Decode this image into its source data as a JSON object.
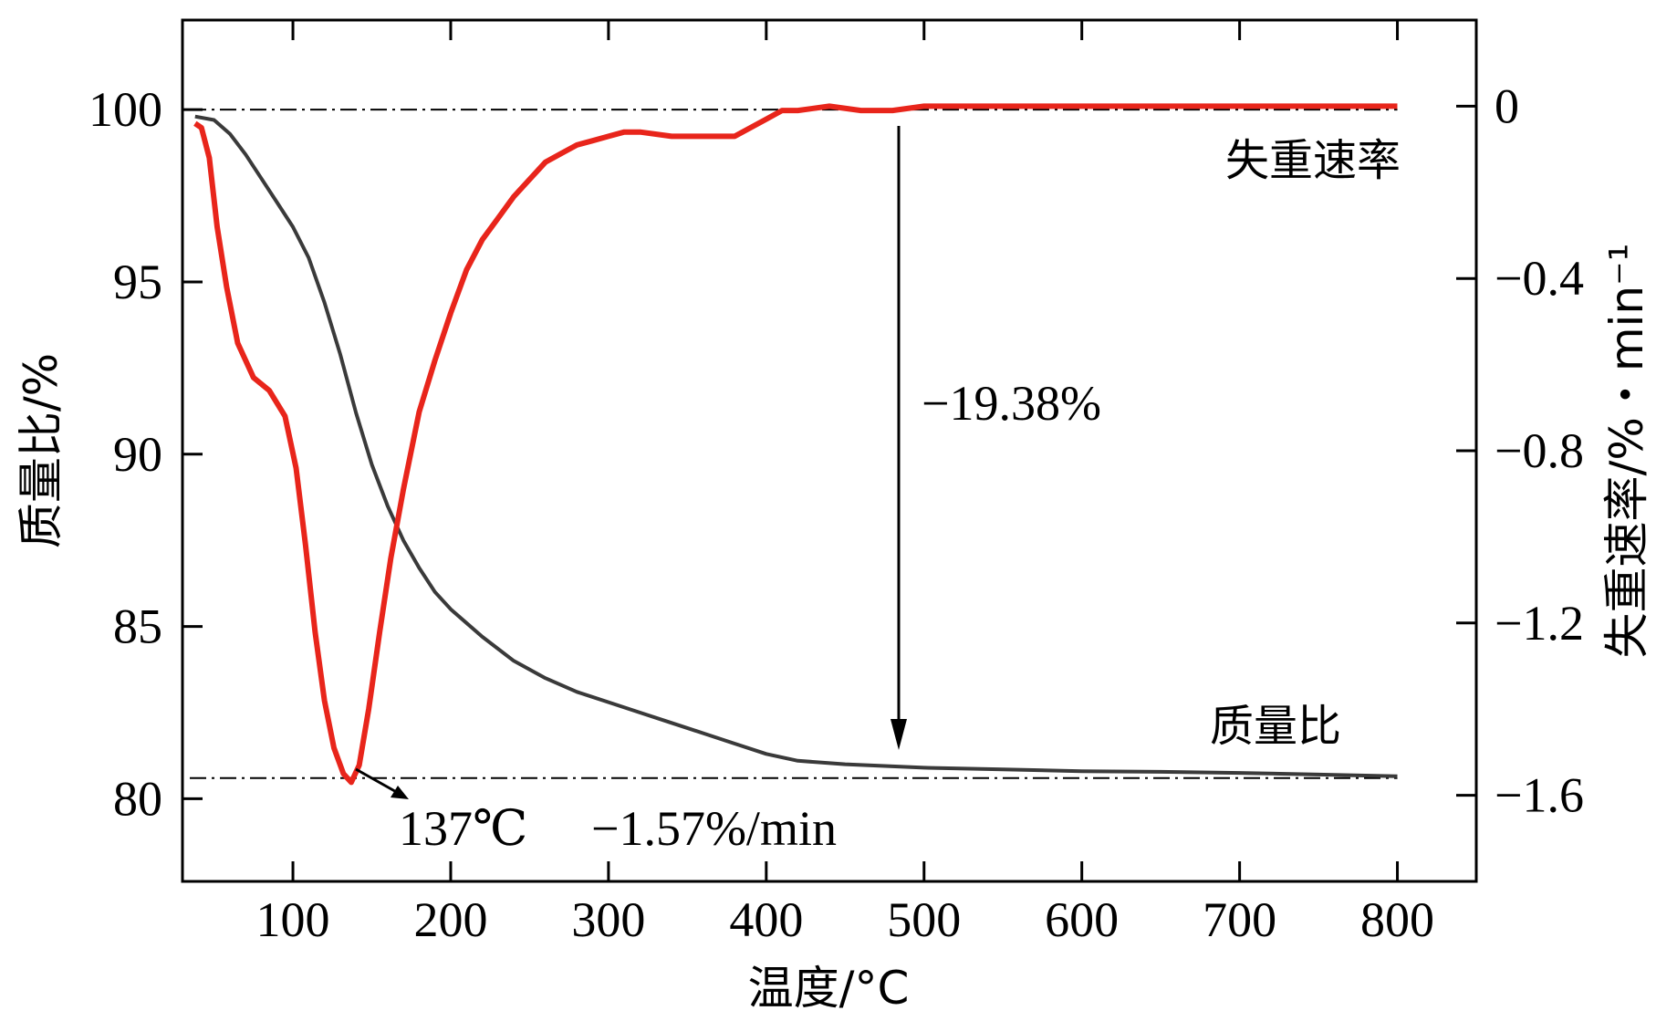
{
  "chart_data": {
    "type": "line",
    "xlabel": "温度/°C",
    "ylabel_left": "质量比/%",
    "ylabel_right": "失重速率/%・min⁻¹",
    "xlim": [
      30,
      850
    ],
    "ylim_left": [
      77.6,
      102.6
    ],
    "ylim_right": [
      -1.8,
      0.2
    ],
    "x_ticks": [
      100,
      200,
      300,
      400,
      500,
      600,
      700,
      800
    ],
    "x_tick_labels": [
      "100",
      "200",
      "300",
      "400",
      "500",
      "600",
      "700",
      "800"
    ],
    "left_ticks": [
      80,
      85,
      90,
      95,
      100
    ],
    "left_tick_labels": [
      "80",
      "85",
      "90",
      "95",
      "100"
    ],
    "right_ticks": [
      -1.6,
      -1.2,
      -0.8,
      -0.4,
      0
    ],
    "right_tick_labels": [
      "−1.6",
      "−1.2",
      "−0.8",
      "−0.4",
      "0"
    ],
    "grid": false,
    "reference_lines_left": [
      100,
      80.6
    ],
    "series": [
      {
        "name": "质量比",
        "axis": "left",
        "color": "#3a3a3a",
        "x": [
          38,
          50,
          60,
          70,
          80,
          90,
          100,
          110,
          120,
          130,
          140,
          150,
          160,
          170,
          180,
          190,
          200,
          220,
          240,
          260,
          280,
          300,
          320,
          340,
          360,
          380,
          400,
          420,
          450,
          500,
          550,
          600,
          650,
          700,
          750,
          800
        ],
        "y": [
          99.8,
          99.7,
          99.3,
          98.7,
          98.0,
          97.3,
          96.6,
          95.7,
          94.4,
          92.9,
          91.2,
          89.7,
          88.5,
          87.5,
          86.7,
          86.0,
          85.5,
          84.7,
          84.0,
          83.5,
          83.1,
          82.8,
          82.5,
          82.2,
          81.9,
          81.6,
          81.3,
          81.1,
          81.0,
          80.9,
          80.85,
          80.8,
          80.78,
          80.75,
          80.7,
          80.65
        ]
      },
      {
        "name": "失重速率",
        "axis": "right",
        "color": "#e8251b",
        "x": [
          38,
          42,
          47,
          52,
          58,
          65,
          75,
          85,
          95,
          102,
          108,
          114,
          120,
          126,
          132,
          137,
          142,
          148,
          155,
          162,
          170,
          180,
          190,
          200,
          210,
          220,
          230,
          240,
          250,
          260,
          270,
          280,
          290,
          300,
          310,
          320,
          340,
          360,
          370,
          380,
          390,
          400,
          410,
          420,
          440,
          460,
          480,
          500,
          600,
          700,
          800
        ],
        "y": [
          -0.04,
          -0.05,
          -0.12,
          -0.28,
          -0.42,
          -0.55,
          -0.63,
          -0.66,
          -0.72,
          -0.84,
          -1.02,
          -1.22,
          -1.38,
          -1.49,
          -1.55,
          -1.57,
          -1.53,
          -1.4,
          -1.22,
          -1.05,
          -0.89,
          -0.71,
          -0.59,
          -0.48,
          -0.38,
          -0.31,
          -0.26,
          -0.21,
          -0.17,
          -0.13,
          -0.11,
          -0.09,
          -0.08,
          -0.07,
          -0.06,
          -0.06,
          -0.07,
          -0.07,
          -0.07,
          -0.07,
          -0.05,
          -0.03,
          -0.01,
          -0.01,
          0.0,
          -0.01,
          -0.01,
          0.0,
          0.0,
          0.0,
          0.0
        ]
      }
    ],
    "annotations": {
      "peak_temp": "137℃",
      "peak_rate": "−1.57%/min",
      "mass_loss": "−19.38%"
    }
  }
}
